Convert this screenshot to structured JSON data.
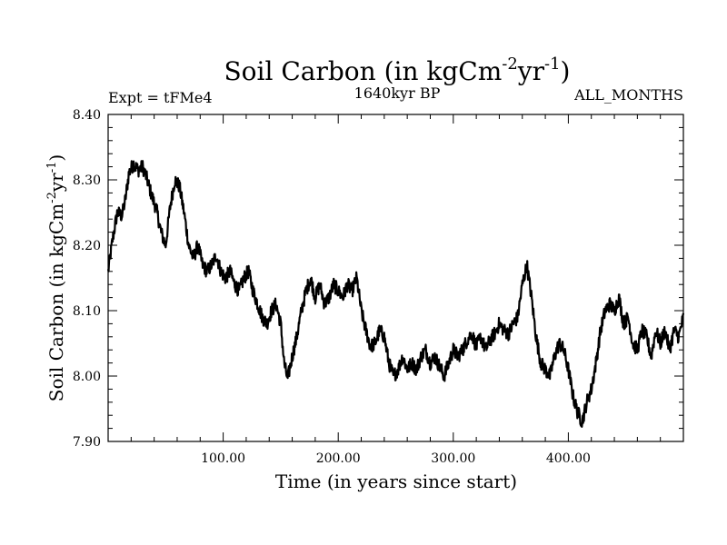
{
  "chart_data": {
    "type": "line",
    "title": "Soil Carbon (in kgCm",
    "title_sup1": "-2",
    "title_mid": "yr",
    "title_sup2": "-1",
    "title_end": ")",
    "subtitle_left": "Expt = tFMe4",
    "subtitle_center": "1640kyr BP",
    "subtitle_right": "ALL_MONTHS",
    "xlabel": "Time (in years since start)",
    "ylabel": "Soil Carbon (in kgCm",
    "ylabel_sup1": "-2",
    "ylabel_mid": "yr",
    "ylabel_sup2": "-1",
    "ylabel_end": ")",
    "xlim": [
      0,
      500
    ],
    "ylim": [
      7.9,
      8.4
    ],
    "xticks": [
      100,
      200,
      300,
      400
    ],
    "xtick_labels": [
      "100.00",
      "200.00",
      "300.00",
      "400.00"
    ],
    "yticks": [
      7.9,
      8.0,
      8.1,
      8.2,
      8.3,
      8.4
    ],
    "ytick_labels": [
      "7.90",
      "8.00",
      "8.10",
      "8.20",
      "8.30",
      "8.40"
    ],
    "grid": false,
    "line_color": "#000000",
    "series": [
      {
        "name": "Soil Carbon",
        "x": [
          0,
          4,
          8,
          12,
          15,
          18,
          22,
          26,
          30,
          34,
          38,
          42,
          46,
          50,
          54,
          58,
          62,
          66,
          70,
          74,
          78,
          82,
          86,
          90,
          94,
          98,
          102,
          106,
          110,
          114,
          118,
          122,
          126,
          130,
          134,
          138,
          142,
          146,
          150,
          153,
          156,
          160,
          164,
          168,
          172,
          176,
          180,
          184,
          188,
          192,
          196,
          200,
          204,
          208,
          212,
          216,
          220,
          224,
          228,
          232,
          236,
          240,
          244,
          248,
          252,
          256,
          260,
          264,
          268,
          272,
          276,
          280,
          284,
          288,
          292,
          296,
          300,
          304,
          308,
          312,
          316,
          320,
          324,
          328,
          332,
          336,
          340,
          344,
          348,
          352,
          356,
          360,
          364,
          368,
          372,
          376,
          380,
          384,
          388,
          392,
          396,
          400,
          404,
          408,
          412,
          416,
          420,
          424,
          428,
          432,
          436,
          440,
          444,
          448,
          452,
          456,
          460,
          464,
          468,
          472,
          476,
          480,
          484,
          488,
          492,
          496,
          500
        ],
        "y": [
          8.16,
          8.21,
          8.25,
          8.245,
          8.27,
          8.31,
          8.325,
          8.315,
          8.32,
          8.3,
          8.275,
          8.255,
          8.22,
          8.2,
          8.26,
          8.3,
          8.29,
          8.25,
          8.2,
          8.18,
          8.2,
          8.17,
          8.16,
          8.17,
          8.185,
          8.16,
          8.15,
          8.16,
          8.14,
          8.13,
          8.15,
          8.16,
          8.13,
          8.11,
          8.09,
          8.08,
          8.1,
          8.11,
          8.08,
          8.02,
          7.995,
          8.03,
          8.06,
          8.1,
          8.13,
          8.15,
          8.12,
          8.14,
          8.11,
          8.12,
          8.14,
          8.13,
          8.12,
          8.14,
          8.13,
          8.15,
          8.1,
          8.07,
          8.045,
          8.05,
          8.07,
          8.06,
          8.02,
          8.0,
          8.01,
          8.03,
          8.01,
          8.02,
          8.01,
          8.03,
          8.04,
          8.02,
          8.03,
          8.015,
          8.0,
          8.02,
          8.04,
          8.03,
          8.04,
          8.055,
          8.065,
          8.045,
          8.06,
          8.04,
          8.055,
          8.065,
          8.08,
          8.07,
          8.065,
          8.08,
          8.09,
          8.14,
          8.17,
          8.12,
          8.06,
          8.02,
          8.01,
          8.0,
          8.03,
          8.05,
          8.04,
          8.01,
          7.97,
          7.945,
          7.93,
          7.96,
          7.98,
          8.02,
          8.07,
          8.1,
          8.11,
          8.1,
          8.12,
          8.08,
          8.09,
          8.05,
          8.04,
          8.07,
          8.06,
          8.03,
          8.07,
          8.05,
          8.07,
          8.04,
          8.07,
          8.06,
          8.09
        ]
      }
    ]
  }
}
